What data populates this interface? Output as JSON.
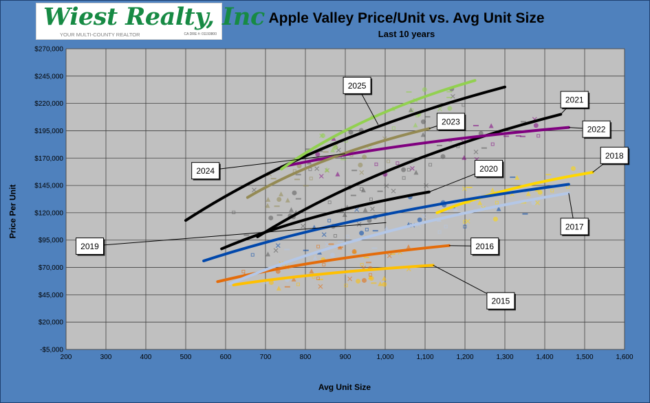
{
  "logo": {
    "brand": "Wiest Realty, Inc",
    "tagline": "YOUR MULTI-COUNTY REALTOR",
    "license": "CA DRE #: 01193800"
  },
  "chart_data": {
    "type": "scatter",
    "title": "Apple Valley Price/Unit vs. Avg Unit Size",
    "subtitle": "Last 10 years",
    "xlabel": "Avg Unit Size",
    "ylabel": "Price Per Unit",
    "xlim": [
      200,
      1600
    ],
    "ylim": [
      -5000,
      270000
    ],
    "xticks": [
      200,
      300,
      400,
      500,
      600,
      700,
      800,
      900,
      1000,
      1100,
      1200,
      1300,
      1400,
      1500,
      1600
    ],
    "xtick_labels": [
      "200",
      "300",
      "400",
      "500",
      "600",
      "700",
      "800",
      "900",
      "1,000",
      "1,100",
      "1,200",
      "1,300",
      "1,400",
      "1,500",
      "1,600"
    ],
    "yticks": [
      -5000,
      20000,
      45000,
      70000,
      95000,
      120000,
      145000,
      170000,
      195000,
      220000,
      245000,
      270000
    ],
    "ytick_labels": [
      "-$5,000",
      "$20,000",
      "$45,000",
      "$70,000",
      "$95,000",
      "$120,000",
      "$145,000",
      "$170,000",
      "$195,000",
      "$220,000",
      "$245,000",
      "$270,000"
    ],
    "grid": true,
    "plot_background": "#c0c0c0",
    "trendlines": [
      {
        "year": "2015",
        "color": "#ffc000",
        "x0": 620,
        "y0": 54000,
        "x1": 1120,
        "y1": 72000,
        "label_x": 1255,
        "label_y": 47000
      },
      {
        "year": "2016",
        "color": "#e46c0a",
        "x0": 580,
        "y0": 57000,
        "x1": 1160,
        "y1": 90000,
        "label_x": 1215,
        "label_y": 97000
      },
      {
        "year": "2017",
        "color": "#b4c7e7",
        "x0": 610,
        "y0": 55000,
        "x1": 1460,
        "y1": 138000,
        "label_x": 1440,
        "label_y": 115000
      },
      {
        "year": "2018",
        "color": "#ffd700",
        "x0": 1130,
        "y0": 120000,
        "x1": 1520,
        "y1": 157000,
        "label_x": 1540,
        "label_y": 180000
      },
      {
        "year": "2019",
        "color": "#0047ab",
        "x0": 545,
        "y0": 76000,
        "x1": 1460,
        "y1": 146000,
        "label_x": 225,
        "label_y": 97000
      },
      {
        "year": "2020",
        "color": "#000000",
        "x0": 590,
        "y0": 87000,
        "x1": 1110,
        "y1": 139000,
        "label_x": 1225,
        "label_y": 168000
      },
      {
        "year": "2021",
        "color": "#000000",
        "x0": 680,
        "y0": 98000,
        "x1": 1440,
        "y1": 210000,
        "label_x": 1440,
        "label_y": 231000
      },
      {
        "year": "2022",
        "color": "#7f007f",
        "x0": 740,
        "y0": 162000,
        "x1": 1460,
        "y1": 198000,
        "label_x": 1495,
        "label_y": 204000
      },
      {
        "year": "2023",
        "color": "#948a54",
        "x0": 655,
        "y0": 134000,
        "x1": 1110,
        "y1": 197000,
        "label_x": 1130,
        "label_y": 211000
      },
      {
        "year": "2024",
        "color": "#000000",
        "x0": 500,
        "y0": 113000,
        "x1": 1300,
        "y1": 235000,
        "label_x": 515,
        "label_y": 166000
      },
      {
        "year": "2025",
        "color": "#92d050",
        "x0": 740,
        "y0": 160000,
        "x1": 1225,
        "y1": 241000,
        "label_x": 895,
        "label_y": 244000
      }
    ]
  }
}
